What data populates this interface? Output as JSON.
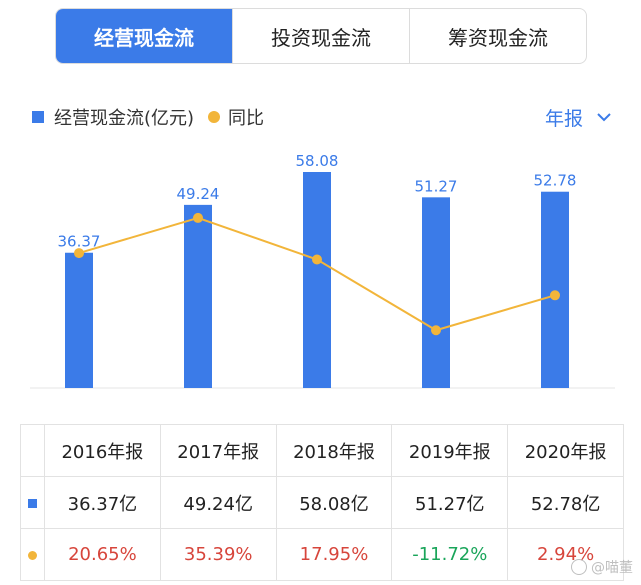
{
  "tabs": [
    {
      "label": "经营现金流",
      "active": true
    },
    {
      "label": "投资现金流",
      "active": false
    },
    {
      "label": "筹资现金流",
      "active": false
    }
  ],
  "legend": {
    "bar": "经营现金流(亿元)",
    "line": "同比"
  },
  "period": {
    "label": "年报",
    "icon": "chevron-down-icon"
  },
  "colors": {
    "accent": "#3b7be8",
    "line": "#f2b53a",
    "positive": "#d7453b",
    "negative": "#1aa55a"
  },
  "chart_data": {
    "type": "bar",
    "categories": [
      "2016年报",
      "2017年报",
      "2018年报",
      "2019年报",
      "2020年报"
    ],
    "series": [
      {
        "name": "经营现金流(亿元)",
        "type": "bar",
        "values": [
          36.37,
          49.24,
          58.08,
          51.27,
          52.78
        ]
      },
      {
        "name": "同比",
        "type": "line",
        "values": [
          20.65,
          35.39,
          17.95,
          -11.72,
          2.94
        ]
      }
    ],
    "bar_labels": [
      "36.37",
      "49.24",
      "58.08",
      "51.27",
      "52.78"
    ],
    "ylim_bar": [
      0,
      58.08
    ],
    "ylim_line": [
      -20,
      45
    ]
  },
  "table": {
    "headers": [
      "2016年报",
      "2017年报",
      "2018年报",
      "2019年报",
      "2020年报"
    ],
    "bar_row": [
      "36.37亿",
      "49.24亿",
      "58.08亿",
      "51.27亿",
      "52.78亿"
    ],
    "yoy_row": [
      "20.65%",
      "35.39%",
      "17.95%",
      "-11.72%",
      "2.94%"
    ]
  },
  "watermark": "@喵董"
}
